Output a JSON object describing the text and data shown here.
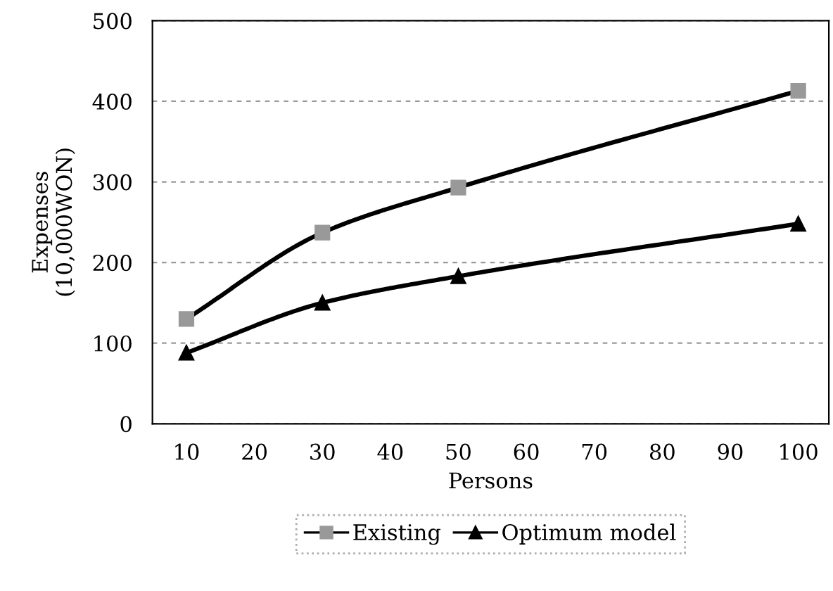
{
  "chart_data": {
    "type": "line",
    "xlabel": "Persons",
    "ylabel": "Expenses\n(10,000WON)",
    "x": [
      10,
      30,
      50,
      100
    ],
    "series": [
      {
        "name": "Existing",
        "color": "#000000",
        "colors": [
          "#999999",
          "#999999",
          "#999999",
          "#999999"
        ],
        "marker": "square",
        "values": [
          130,
          237,
          293,
          413
        ]
      },
      {
        "name": "Optimum model",
        "color": "#000000",
        "colors": [
          "#000000",
          "#000000",
          "#000000",
          "#000000"
        ],
        "marker": "triangle",
        "values": [
          88,
          150,
          183,
          248
        ]
      }
    ],
    "xlim": [
      5,
      104.5
    ],
    "xticks": [
      10,
      20,
      30,
      40,
      50,
      60,
      70,
      80,
      90,
      100
    ],
    "ylim": [
      0,
      500
    ],
    "yticks": [
      0,
      100,
      200,
      300,
      400,
      500
    ],
    "grid": "y",
    "legend": "bottom",
    "line_style": "solid"
  }
}
